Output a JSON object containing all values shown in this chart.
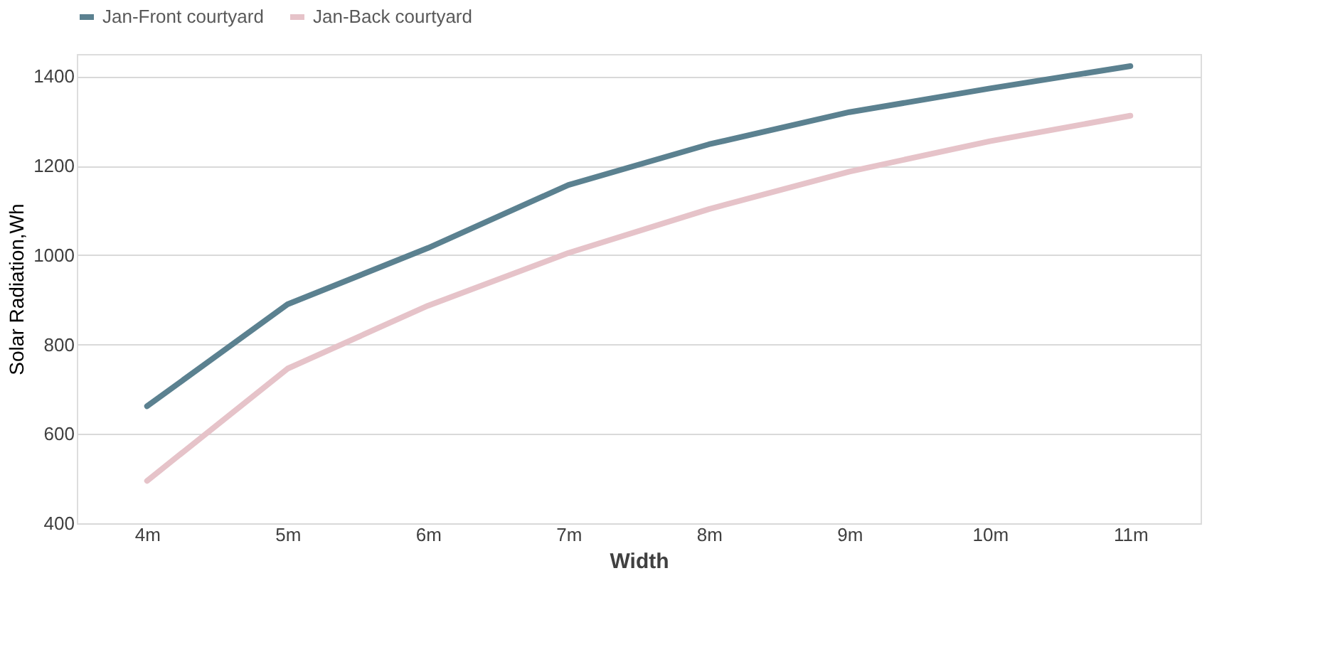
{
  "chart_data": {
    "type": "line",
    "xlabel": "Width",
    "ylabel": "Solar Radiation,Wh",
    "categories": [
      "4m",
      "5m",
      "6m",
      "7m",
      "8m",
      "9m",
      "10m",
      "11m"
    ],
    "series": [
      {
        "name": "Jan-Front courtyard",
        "color": "#5b8190",
        "values": [
          662,
          890,
          1016,
          1157,
          1248,
          1320,
          1373,
          1423
        ]
      },
      {
        "name": "Jan-Back courtyard",
        "color": "#e6c3c9",
        "values": [
          495,
          746,
          887,
          1005,
          1103,
          1187,
          1255,
          1312
        ]
      }
    ],
    "ylim": [
      400,
      1450
    ],
    "yticks": [
      400,
      600,
      800,
      1000,
      1200,
      1400
    ],
    "grid": "y",
    "legend": "top",
    "marker": "none",
    "line_style": "solid"
  }
}
